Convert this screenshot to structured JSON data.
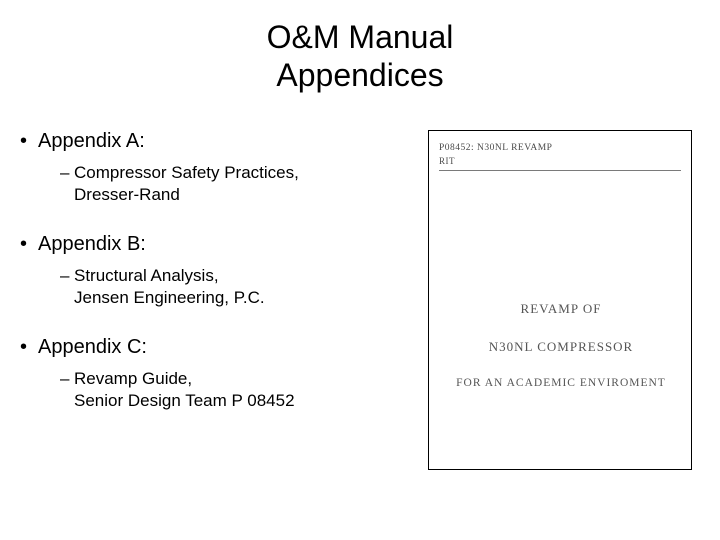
{
  "title_line1": "O&M Manual",
  "title_line2": "Appendices",
  "items": [
    {
      "label": "Appendix A:",
      "sub1": "Compressor Safety Practices,",
      "sub2": "Dresser-Rand"
    },
    {
      "label": "Appendix B:",
      "sub1": "Structural Analysis,",
      "sub2": "Jensen Engineering, P.C."
    },
    {
      "label": "Appendix C:",
      "sub1": "Revamp Guide,",
      "sub2": "Senior Design Team P 08452"
    }
  ],
  "doc": {
    "header": "P08452: N30NL REVAMP",
    "sub": "RIT",
    "center1": "REVAMP OF",
    "center2": "N30NL COMPRESSOR",
    "center3": "FOR AN ACADEMIC ENVIROMENT"
  },
  "colors": {
    "text": "#000000",
    "docText": "#555555",
    "docRule": "#7a7a7a",
    "bg": "#ffffff",
    "border": "#000000"
  }
}
